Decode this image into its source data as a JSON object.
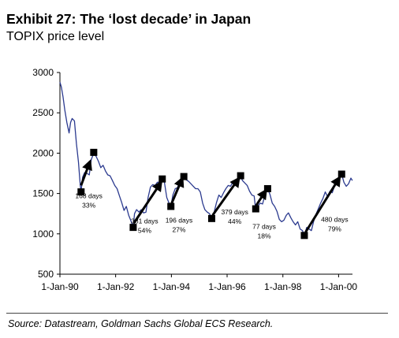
{
  "header": {
    "title": "Exhibit 27:   The ‘lost decade’ in Japan",
    "subtitle": "TOPIX price level"
  },
  "footer": {
    "source": "Source: Datastream, Goldman Sachs Global ECS Research."
  },
  "chart_data": {
    "type": "line",
    "title": "",
    "xlabel": "",
    "ylabel": "",
    "ylim": [
      500,
      3000
    ],
    "xlim": [
      "1990-01-01",
      "2000-07-01"
    ],
    "yticks": [
      500,
      1000,
      1500,
      2000,
      2500,
      3000
    ],
    "xticks": [
      {
        "date": "1990-01-01",
        "label": "1-Jan-90"
      },
      {
        "date": "1992-01-01",
        "label": "1-Jan-92"
      },
      {
        "date": "1994-01-01",
        "label": "1-Jan-94"
      },
      {
        "date": "1996-01-01",
        "label": "1-Jan-96"
      },
      {
        "date": "1998-01-01",
        "label": "1-Jan-98"
      },
      {
        "date": "2000-01-01",
        "label": "1-Jan-00"
      }
    ],
    "grid": false,
    "colors": {
      "line": "#2b3a8f",
      "markers": "#000000",
      "arrows": "#000000"
    },
    "series": [
      {
        "points": [
          [
            "1990-01-01",
            2880
          ],
          [
            "1990-01-20",
            2820
          ],
          [
            "1990-02-10",
            2700
          ],
          [
            "1990-03-05",
            2540
          ],
          [
            "1990-04-02",
            2380
          ],
          [
            "1990-05-01",
            2250
          ],
          [
            "1990-05-20",
            2380
          ],
          [
            "1990-06-10",
            2430
          ],
          [
            "1990-07-10",
            2400
          ],
          [
            "1990-08-05",
            2120
          ],
          [
            "1990-09-01",
            1890
          ],
          [
            "1990-09-25",
            1600
          ],
          [
            "1990-10-05",
            1520
          ],
          [
            "1990-10-25",
            1700
          ],
          [
            "1990-11-20",
            1760
          ],
          [
            "1990-12-20",
            1750
          ],
          [
            "1991-01-20",
            1730
          ],
          [
            "1991-02-15",
            1920
          ],
          [
            "1991-03-20",
            2000
          ],
          [
            "1991-04-20",
            1960
          ],
          [
            "1991-05-20",
            1900
          ],
          [
            "1991-06-20",
            1820
          ],
          [
            "1991-07-20",
            1850
          ],
          [
            "1991-08-20",
            1780
          ],
          [
            "1991-09-20",
            1730
          ],
          [
            "1991-10-20",
            1720
          ],
          [
            "1991-11-20",
            1660
          ],
          [
            "1991-12-20",
            1600
          ],
          [
            "1992-01-20",
            1560
          ],
          [
            "1992-02-20",
            1470
          ],
          [
            "1992-03-20",
            1390
          ],
          [
            "1992-04-20",
            1290
          ],
          [
            "1992-05-20",
            1340
          ],
          [
            "1992-06-20",
            1230
          ],
          [
            "1992-07-20",
            1160
          ],
          [
            "1992-08-18",
            1080
          ],
          [
            "1992-09-05",
            1250
          ],
          [
            "1992-10-01",
            1300
          ],
          [
            "1992-11-01",
            1270
          ],
          [
            "1992-12-01",
            1300
          ],
          [
            "1993-01-01",
            1260
          ],
          [
            "1993-02-01",
            1270
          ],
          [
            "1993-03-01",
            1450
          ],
          [
            "1993-04-01",
            1580
          ],
          [
            "1993-05-01",
            1610
          ],
          [
            "1993-06-01",
            1600
          ],
          [
            "1993-07-01",
            1640
          ],
          [
            "1993-08-01",
            1640
          ],
          [
            "1993-09-03",
            1680
          ],
          [
            "1993-10-01",
            1640
          ],
          [
            "1993-11-01",
            1450
          ],
          [
            "1993-12-01",
            1380
          ],
          [
            "1993-12-25",
            1340
          ],
          [
            "1994-01-20",
            1480
          ],
          [
            "1994-02-20",
            1560
          ],
          [
            "1994-03-20",
            1570
          ],
          [
            "1994-04-20",
            1640
          ],
          [
            "1994-05-20",
            1660
          ],
          [
            "1994-06-13",
            1710
          ],
          [
            "1994-07-15",
            1670
          ],
          [
            "1994-08-15",
            1650
          ],
          [
            "1994-09-15",
            1620
          ],
          [
            "1994-10-15",
            1590
          ],
          [
            "1994-11-15",
            1560
          ],
          [
            "1994-12-15",
            1560
          ],
          [
            "1995-01-15",
            1520
          ],
          [
            "1995-02-15",
            1380
          ],
          [
            "1995-03-15",
            1300
          ],
          [
            "1995-04-15",
            1270
          ],
          [
            "1995-05-15",
            1250
          ],
          [
            "1995-06-13",
            1190
          ],
          [
            "1995-07-15",
            1270
          ],
          [
            "1995-08-15",
            1390
          ],
          [
            "1995-09-15",
            1480
          ],
          [
            "1995-10-15",
            1450
          ],
          [
            "1995-11-15",
            1510
          ],
          [
            "1995-12-15",
            1560
          ],
          [
            "1996-01-15",
            1600
          ],
          [
            "1996-02-15",
            1590
          ],
          [
            "1996-03-15",
            1640
          ],
          [
            "1996-04-15",
            1660
          ],
          [
            "1996-05-15",
            1680
          ],
          [
            "1996-06-26",
            1720
          ],
          [
            "1996-07-20",
            1660
          ],
          [
            "1996-08-20",
            1630
          ],
          [
            "1996-09-20",
            1600
          ],
          [
            "1996-10-20",
            1530
          ],
          [
            "1996-11-20",
            1480
          ],
          [
            "1996-12-20",
            1470
          ],
          [
            "1997-01-10",
            1300
          ],
          [
            "1997-02-10",
            1350
          ],
          [
            "1997-03-10",
            1380
          ],
          [
            "1997-04-10",
            1370
          ],
          [
            "1997-05-10",
            1480
          ],
          [
            "1997-06-15",
            1560
          ],
          [
            "1997-07-15",
            1490
          ],
          [
            "1997-08-15",
            1380
          ],
          [
            "1997-09-15",
            1340
          ],
          [
            "1997-10-15",
            1280
          ],
          [
            "1997-11-15",
            1180
          ],
          [
            "1997-12-15",
            1150
          ],
          [
            "1998-01-15",
            1170
          ],
          [
            "1998-02-15",
            1230
          ],
          [
            "1998-03-15",
            1260
          ],
          [
            "1998-04-15",
            1200
          ],
          [
            "1998-05-15",
            1150
          ],
          [
            "1998-06-15",
            1110
          ],
          [
            "1998-07-15",
            1150
          ],
          [
            "1998-08-15",
            1060
          ],
          [
            "1998-09-15",
            1040
          ],
          [
            "1998-10-09",
            980
          ],
          [
            "1998-11-10",
            1080
          ],
          [
            "1998-12-10",
            1060
          ],
          [
            "1999-01-10",
            1040
          ],
          [
            "1999-02-10",
            1160
          ],
          [
            "1999-03-10",
            1240
          ],
          [
            "1999-04-10",
            1310
          ],
          [
            "1999-05-10",
            1380
          ],
          [
            "1999-06-10",
            1440
          ],
          [
            "1999-07-10",
            1520
          ],
          [
            "1999-08-10",
            1460
          ],
          [
            "1999-09-10",
            1530
          ],
          [
            "1999-10-10",
            1510
          ],
          [
            "1999-11-10",
            1600
          ],
          [
            "1999-12-10",
            1680
          ],
          [
            "2000-01-10",
            1700
          ],
          [
            "2000-02-10",
            1740
          ],
          [
            "2000-03-10",
            1640
          ],
          [
            "2000-04-10",
            1590
          ],
          [
            "2000-05-10",
            1620
          ],
          [
            "2000-06-10",
            1690
          ],
          [
            "2000-06-30",
            1660
          ]
        ]
      }
    ],
    "markers": [
      {
        "date": "1990-10-05",
        "value": 1520
      },
      {
        "date": "1991-03-20",
        "value": 2010
      },
      {
        "date": "1992-08-18",
        "value": 1080
      },
      {
        "date": "1993-09-03",
        "value": 1680
      },
      {
        "date": "1993-12-25",
        "value": 1340
      },
      {
        "date": "1994-06-13",
        "value": 1710
      },
      {
        "date": "1995-06-13",
        "value": 1190
      },
      {
        "date": "1996-06-26",
        "value": 1720
      },
      {
        "date": "1997-01-10",
        "value": 1310
      },
      {
        "date": "1997-06-15",
        "value": 1560
      },
      {
        "date": "1998-10-09",
        "value": 980
      },
      {
        "date": "2000-02-10",
        "value": 1740
      }
    ],
    "arrows": [
      {
        "from": [
          "1990-10-05",
          1600
        ],
        "to": [
          "1991-02-01",
          1900
        ]
      },
      {
        "from": [
          "1992-08-25",
          1130
        ],
        "to": [
          "1993-08-20",
          1640
        ]
      },
      {
        "from": [
          "1994-01-05",
          1380
        ],
        "to": [
          "1994-05-25",
          1690
        ]
      },
      {
        "from": [
          "1995-06-25",
          1230
        ],
        "to": [
          "1996-06-05",
          1690
        ]
      },
      {
        "from": [
          "1997-01-15",
          1350
        ],
        "to": [
          "1997-05-25",
          1540
        ]
      },
      {
        "from": [
          "1998-10-25",
          1020
        ],
        "to": [
          "2000-01-15",
          1700
        ]
      }
    ],
    "annotations": [
      {
        "lines": [
          "168 days",
          "33%"
        ],
        "date": "1991-01-15",
        "value": 1440
      },
      {
        "lines": [
          "381 days",
          "54%"
        ],
        "date": "1993-01-15",
        "value": 1130
      },
      {
        "lines": [
          "196 days",
          "27%"
        ],
        "date": "1994-04-10",
        "value": 1140
      },
      {
        "lines": [
          "379 days",
          "44%"
        ],
        "date": "1996-04-10",
        "value": 1240
      },
      {
        "lines": [
          "77 days",
          "18%"
        ],
        "date": "1997-05-01",
        "value": 1060
      },
      {
        "lines": [
          "480 days",
          "79%"
        ],
        "date": "1999-11-10",
        "value": 1150
      }
    ]
  }
}
